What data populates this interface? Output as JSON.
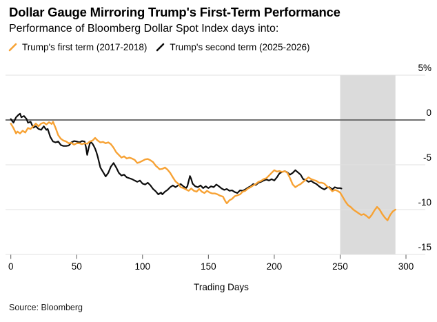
{
  "header": {
    "title": "Dollar Gauge Mirroring Trump's First-Term Performance",
    "subtitle": "Performance of Bloomberg Dollar Spot Index days into:"
  },
  "legend": {
    "items": [
      {
        "label": "Trump's first term (2017-2018)",
        "color": "#F7A234"
      },
      {
        "label": "Trump's second term (2025-2026)",
        "color": "#0d0d0d"
      }
    ]
  },
  "footer": {
    "source": "Source: Bloomberg"
  },
  "colors": {
    "accent_orange": "#F7A234",
    "line_black": "#0d0d0d",
    "zero_line": "#6F6F6F",
    "gridline": "#E0E0E0",
    "tick": "#5A5A5A",
    "band": "#DBDBDB"
  },
  "chart_data": {
    "type": "line",
    "title": "Dollar Gauge Mirroring Trump's First-Term Performance",
    "subtitle": "Performance of Bloomberg Dollar Spot Index days into:",
    "xlabel": "Trading Days",
    "ylabel": "",
    "xlim": [
      0,
      315
    ],
    "ylim": [
      -15,
      5
    ],
    "grid": true,
    "legend_position": "top",
    "x_ticks": [
      0,
      50,
      100,
      150,
      200,
      250,
      300
    ],
    "y_ticks": [
      {
        "value": 5,
        "label": "5%"
      },
      {
        "value": 0,
        "label": "0"
      },
      {
        "value": -5,
        "label": "-5"
      },
      {
        "value": -10,
        "label": "-10"
      },
      {
        "value": -15,
        "label": "-15"
      }
    ],
    "highlight_band": {
      "x_start": 250,
      "x_end": 292,
      "color": "#DBDBDB"
    },
    "series": [
      {
        "name": "Trump's first term (2017-2018)",
        "color": "#F7A234",
        "points": [
          [
            0,
            -0.4
          ],
          [
            2,
            -0.9
          ],
          [
            4,
            -1.5
          ],
          [
            5,
            -1.3
          ],
          [
            7,
            -1.5
          ],
          [
            9,
            -1.2
          ],
          [
            11,
            -1.4
          ],
          [
            13,
            -0.9
          ],
          [
            15,
            -1.0
          ],
          [
            17,
            -0.7
          ],
          [
            19,
            -0.4
          ],
          [
            21,
            -0.7
          ],
          [
            23,
            -0.4
          ],
          [
            25,
            -0.3
          ],
          [
            27,
            -0.5
          ],
          [
            29,
            -0.25
          ],
          [
            31,
            -0.45
          ],
          [
            32,
            -0.2
          ],
          [
            34,
            -0.9
          ],
          [
            36,
            -1.7
          ],
          [
            38,
            -2.1
          ],
          [
            40,
            -2.3
          ],
          [
            42,
            -2.4
          ],
          [
            44,
            -2.6
          ],
          [
            46,
            -2.55
          ],
          [
            48,
            -2.75
          ],
          [
            50,
            -2.6
          ],
          [
            52,
            -2.6
          ],
          [
            54,
            -2.7
          ],
          [
            56,
            -2.6
          ],
          [
            58,
            -2.65
          ],
          [
            60,
            -2.4
          ],
          [
            62,
            -2.3
          ],
          [
            64,
            -2.0
          ],
          [
            66,
            -2.3
          ],
          [
            68,
            -2.5
          ],
          [
            70,
            -2.45
          ],
          [
            72,
            -2.6
          ],
          [
            74,
            -2.5
          ],
          [
            76,
            -2.7
          ],
          [
            78,
            -3.1
          ],
          [
            80,
            -3.6
          ],
          [
            82,
            -3.9
          ],
          [
            84,
            -4.2
          ],
          [
            86,
            -4.05
          ],
          [
            88,
            -4.3
          ],
          [
            90,
            -4.2
          ],
          [
            92,
            -4.3
          ],
          [
            94,
            -4.45
          ],
          [
            96,
            -4.8
          ],
          [
            98,
            -4.7
          ],
          [
            100,
            -4.55
          ],
          [
            102,
            -4.4
          ],
          [
            104,
            -4.35
          ],
          [
            106,
            -4.5
          ],
          [
            108,
            -4.7
          ],
          [
            110,
            -5.1
          ],
          [
            112,
            -5.35
          ],
          [
            113,
            -5.5
          ],
          [
            115,
            -5.45
          ],
          [
            117,
            -5.3
          ],
          [
            119,
            -5.55
          ],
          [
            121,
            -5.9
          ],
          [
            123,
            -6.4
          ],
          [
            125,
            -6.85
          ],
          [
            127,
            -7.1
          ],
          [
            129,
            -7.5
          ],
          [
            131,
            -7.6
          ],
          [
            133,
            -7.75
          ],
          [
            135,
            -7.9
          ],
          [
            137,
            -7.65
          ],
          [
            139,
            -7.9
          ],
          [
            141,
            -8.0
          ],
          [
            143,
            -7.7
          ],
          [
            145,
            -8.0
          ],
          [
            147,
            -8.15
          ],
          [
            149,
            -7.9
          ],
          [
            151,
            -8.1
          ],
          [
            153,
            -8.2
          ],
          [
            155,
            -8.2
          ],
          [
            157,
            -8.3
          ],
          [
            159,
            -8.45
          ],
          [
            161,
            -8.55
          ],
          [
            163,
            -9.1
          ],
          [
            164,
            -9.3
          ],
          [
            166,
            -8.95
          ],
          [
            168,
            -8.8
          ],
          [
            170,
            -8.5
          ],
          [
            172,
            -8.4
          ],
          [
            174,
            -8.3
          ],
          [
            176,
            -8.0
          ],
          [
            178,
            -7.9
          ],
          [
            180,
            -7.65
          ],
          [
            182,
            -7.5
          ],
          [
            184,
            -7.3
          ],
          [
            186,
            -7.15
          ],
          [
            188,
            -6.9
          ],
          [
            190,
            -6.8
          ],
          [
            192,
            -6.6
          ],
          [
            194,
            -6.5
          ],
          [
            196,
            -6.2
          ],
          [
            198,
            -5.9
          ],
          [
            200,
            -5.6
          ],
          [
            202,
            -5.75
          ],
          [
            204,
            -5.7
          ],
          [
            206,
            -5.8
          ],
          [
            208,
            -5.7
          ],
          [
            210,
            -5.9
          ],
          [
            212,
            -6.5
          ],
          [
            214,
            -7.2
          ],
          [
            216,
            -7.5
          ],
          [
            218,
            -7.3
          ],
          [
            220,
            -7.15
          ],
          [
            222,
            -6.9
          ],
          [
            224,
            -6.65
          ],
          [
            226,
            -6.4
          ],
          [
            228,
            -6.6
          ],
          [
            230,
            -6.7
          ],
          [
            232,
            -6.8
          ],
          [
            234,
            -7.0
          ],
          [
            236,
            -7.0
          ],
          [
            238,
            -7.1
          ],
          [
            240,
            -7.4
          ],
          [
            242,
            -7.6
          ],
          [
            244,
            -7.95
          ],
          [
            246,
            -7.8
          ],
          [
            248,
            -7.9
          ],
          [
            250,
            -8.1
          ],
          [
            252,
            -8.6
          ],
          [
            254,
            -9.1
          ],
          [
            256,
            -9.5
          ],
          [
            258,
            -9.7
          ],
          [
            260,
            -10.0
          ],
          [
            262,
            -10.2
          ],
          [
            264,
            -10.4
          ],
          [
            266,
            -10.6
          ],
          [
            268,
            -10.5
          ],
          [
            270,
            -10.7
          ],
          [
            272,
            -10.95
          ],
          [
            274,
            -10.6
          ],
          [
            276,
            -10.1
          ],
          [
            278,
            -9.7
          ],
          [
            280,
            -10.0
          ],
          [
            282,
            -10.5
          ],
          [
            284,
            -10.9
          ],
          [
            286,
            -11.2
          ],
          [
            288,
            -10.6
          ],
          [
            290,
            -10.2
          ],
          [
            292,
            -10.0
          ]
        ]
      },
      {
        "name": "Trump's second term (2025-2026)",
        "color": "#0d0d0d",
        "points": [
          [
            0,
            0.1
          ],
          [
            1,
            -0.1
          ],
          [
            2,
            -0.3
          ],
          [
            4,
            0.3
          ],
          [
            6,
            0.6
          ],
          [
            7,
            0.7
          ],
          [
            8,
            0.3
          ],
          [
            10,
            0.45
          ],
          [
            12,
            0.1
          ],
          [
            13,
            -0.3
          ],
          [
            15,
            -0.2
          ],
          [
            17,
            -0.85
          ],
          [
            19,
            -0.7
          ],
          [
            21,
            -1.0
          ],
          [
            23,
            -1.1
          ],
          [
            25,
            -0.7
          ],
          [
            27,
            -1.1
          ],
          [
            28,
            -1.0
          ],
          [
            30,
            -1.9
          ],
          [
            32,
            -2.4
          ],
          [
            34,
            -2.5
          ],
          [
            36,
            -2.4
          ],
          [
            38,
            -2.8
          ],
          [
            40,
            -2.9
          ],
          [
            42,
            -2.9
          ],
          [
            44,
            -2.85
          ],
          [
            46,
            -2.5
          ],
          [
            48,
            -2.35
          ],
          [
            50,
            -2.4
          ],
          [
            52,
            -2.5
          ],
          [
            54,
            -2.35
          ],
          [
            56,
            -2.4
          ],
          [
            57,
            -3.0
          ],
          [
            58,
            -3.9
          ],
          [
            59,
            -3.2
          ],
          [
            60,
            -2.6
          ],
          [
            61,
            -2.5
          ],
          [
            62,
            -2.65
          ],
          [
            63,
            -2.9
          ],
          [
            64,
            -3.2
          ],
          [
            65,
            -3.6
          ],
          [
            66,
            -4.1
          ],
          [
            67,
            -4.7
          ],
          [
            68,
            -5.3
          ],
          [
            70,
            -5.8
          ],
          [
            72,
            -6.3
          ],
          [
            74,
            -5.9
          ],
          [
            76,
            -5.2
          ],
          [
            78,
            -4.8
          ],
          [
            80,
            -5.3
          ],
          [
            82,
            -5.9
          ],
          [
            84,
            -6.2
          ],
          [
            86,
            -6.1
          ],
          [
            88,
            -6.4
          ],
          [
            90,
            -6.5
          ],
          [
            92,
            -6.6
          ],
          [
            94,
            -6.75
          ],
          [
            96,
            -6.9
          ],
          [
            98,
            -6.75
          ],
          [
            100,
            -7.1
          ],
          [
            102,
            -7.2
          ],
          [
            104,
            -7.0
          ],
          [
            106,
            -7.3
          ],
          [
            108,
            -7.7
          ],
          [
            110,
            -7.95
          ],
          [
            112,
            -8.3
          ],
          [
            114,
            -8.1
          ],
          [
            115,
            -8.3
          ],
          [
            117,
            -8.0
          ],
          [
            119,
            -7.8
          ],
          [
            121,
            -7.5
          ],
          [
            123,
            -7.3
          ],
          [
            125,
            -7.5
          ],
          [
            127,
            -7.3
          ],
          [
            129,
            -7.15
          ],
          [
            131,
            -7.4
          ],
          [
            133,
            -7.6
          ],
          [
            134,
            -7.4
          ],
          [
            136,
            -6.25
          ],
          [
            137,
            -6.6
          ],
          [
            138,
            -7.1
          ],
          [
            140,
            -7.4
          ],
          [
            142,
            -7.5
          ],
          [
            144,
            -7.3
          ],
          [
            146,
            -7.6
          ],
          [
            148,
            -7.4
          ],
          [
            150,
            -7.6
          ],
          [
            152,
            -7.4
          ],
          [
            154,
            -7.5
          ],
          [
            156,
            -7.2
          ],
          [
            158,
            -7.4
          ],
          [
            160,
            -7.65
          ],
          [
            162,
            -7.8
          ],
          [
            164,
            -7.7
          ],
          [
            166,
            -7.9
          ],
          [
            168,
            -7.85
          ],
          [
            170,
            -8.05
          ],
          [
            172,
            -8.15
          ],
          [
            174,
            -7.85
          ],
          [
            176,
            -7.9
          ],
          [
            178,
            -7.75
          ],
          [
            180,
            -7.55
          ],
          [
            182,
            -7.4
          ],
          [
            184,
            -7.15
          ],
          [
            186,
            -7.25
          ],
          [
            188,
            -7.0
          ],
          [
            190,
            -6.9
          ],
          [
            192,
            -6.75
          ],
          [
            194,
            -6.65
          ],
          [
            196,
            -6.75
          ],
          [
            198,
            -6.6
          ],
          [
            200,
            -6.75
          ],
          [
            202,
            -6.4
          ],
          [
            204,
            -5.95
          ],
          [
            206,
            -5.8
          ],
          [
            208,
            -5.7
          ],
          [
            210,
            -5.85
          ],
          [
            212,
            -6.1
          ],
          [
            214,
            -5.9
          ],
          [
            216,
            -5.6
          ],
          [
            218,
            -5.85
          ],
          [
            220,
            -6.1
          ],
          [
            222,
            -6.6
          ],
          [
            224,
            -6.7
          ],
          [
            226,
            -6.9
          ],
          [
            228,
            -6.8
          ],
          [
            230,
            -7.0
          ],
          [
            232,
            -7.15
          ],
          [
            234,
            -7.4
          ],
          [
            236,
            -7.6
          ],
          [
            238,
            -7.75
          ],
          [
            240,
            -7.55
          ],
          [
            242,
            -7.5
          ],
          [
            244,
            -7.75
          ],
          [
            246,
            -7.5
          ],
          [
            248,
            -7.6
          ],
          [
            250,
            -7.6
          ],
          [
            251,
            -7.65
          ]
        ]
      }
    ]
  }
}
